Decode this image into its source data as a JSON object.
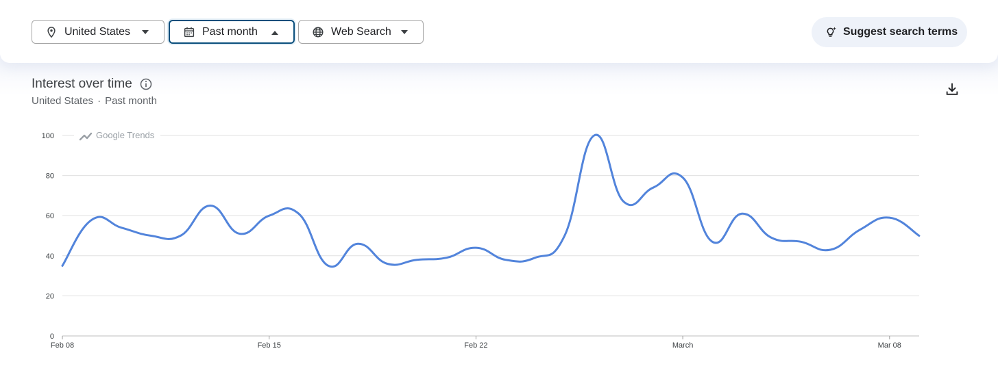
{
  "filters": {
    "region": "United States",
    "time": "Past month",
    "property": "Web Search"
  },
  "suggest_label": "Suggest search terms",
  "chart_header": {
    "title": "Interest over time",
    "subtitle_region": "United States",
    "subtitle_sep": "·",
    "subtitle_time": "Past month"
  },
  "watermark": "Google Trends",
  "icons": [
    "location-pin-icon",
    "calendar-icon",
    "globe-icon",
    "lightbulb-sparkle-icon",
    "info-icon",
    "download-icon"
  ],
  "colors": {
    "line": "#5284db",
    "grid": "#e0e0e0",
    "accent": "#0b4f7c"
  },
  "chart_data": {
    "type": "line",
    "title": "Interest over time",
    "xlabel": "",
    "ylabel": "",
    "ylim": [
      0,
      100
    ],
    "yticks": [
      0,
      20,
      40,
      60,
      80,
      100
    ],
    "grid": true,
    "x_tick_labels": [
      {
        "label": "Feb 08",
        "index": 0
      },
      {
        "label": "Feb 15",
        "index": 7
      },
      {
        "label": "Feb 22",
        "index": 14
      },
      {
        "label": "March",
        "index": 21
      },
      {
        "label": "Mar 08",
        "index": 28
      }
    ],
    "x": [
      "Feb 08",
      "Feb 09",
      "Feb 10",
      "Feb 11",
      "Feb 12",
      "Feb 13",
      "Feb 14",
      "Feb 15",
      "Feb 16",
      "Feb 17",
      "Feb 18",
      "Feb 19",
      "Feb 20",
      "Feb 21",
      "Feb 22",
      "Feb 23",
      "Feb 24",
      "Feb 25",
      "Feb 26",
      "Feb 27",
      "Feb 28",
      "Mar 01",
      "Mar 02",
      "Mar 03",
      "Mar 04",
      "Mar 05",
      "Mar 06",
      "Mar 07",
      "Mar 08",
      "Mar 09"
    ],
    "series": [
      {
        "values": [
          35,
          58,
          54,
          50,
          50,
          65,
          51,
          60,
          61,
          35,
          46,
          36,
          38,
          39,
          44,
          38,
          39,
          50,
          100,
          67,
          74,
          79,
          47,
          61,
          49,
          47,
          43,
          53,
          59,
          50
        ]
      }
    ]
  }
}
